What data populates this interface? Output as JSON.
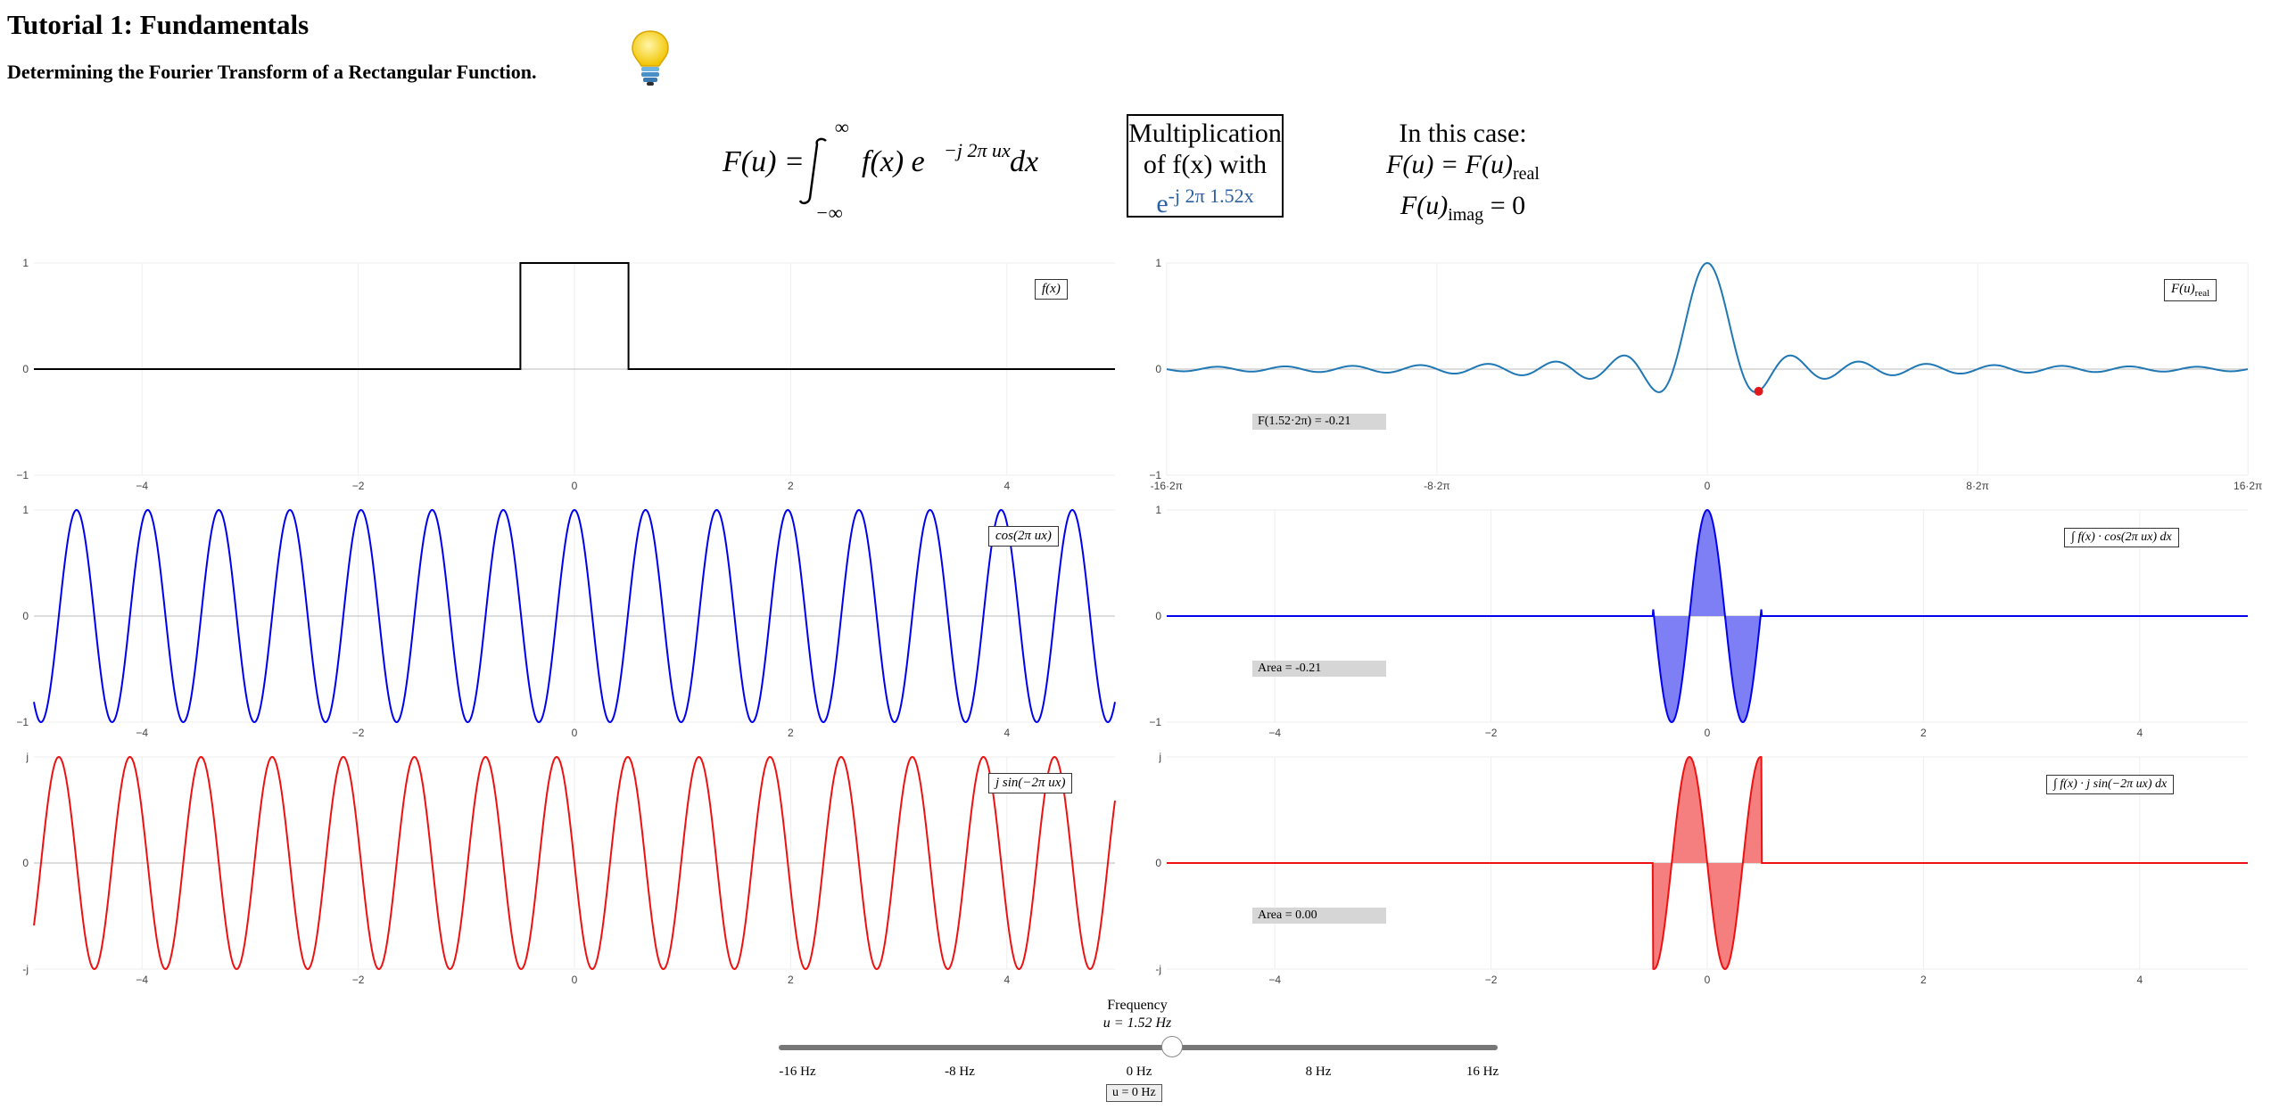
{
  "header": {
    "title": "Tutorial 1: Fundamentals",
    "subtitle": "Determining the Fourier Transform of a Rectangular Function."
  },
  "formula": {
    "lhs": "F(u) =",
    "upper": "∞",
    "lower": "−∞",
    "integrand": "f(x) e",
    "exponent": "−j 2π ux",
    "dx": "dx"
  },
  "multiplication_box": {
    "line1": "Multiplication",
    "line2": "of f(x) with",
    "base": "e",
    "exponent": "-j 2π 1.52x"
  },
  "case_box": {
    "line1": "In this case:",
    "line2": "F(u) = F(u)",
    "line2_sub": "real",
    "line3": "F(u)",
    "line3_sub": "imag",
    "line3_rest": " = 0"
  },
  "panels": {
    "fx": {
      "legend": "f(x)",
      "yticks": [
        "1",
        "0",
        "−1"
      ],
      "xticks": [
        "−4",
        "−2",
        "0",
        "2",
        "4"
      ]
    },
    "Fu": {
      "legend": "F(u)",
      "legend_sub": "real",
      "yticks": [
        "1",
        "0",
        "−1"
      ],
      "xticks": [
        "-16·2π",
        "-8·2π",
        "0",
        "8·2π",
        "16·2π"
      ],
      "label": "F(1.52·2π) = -0.21"
    },
    "cos": {
      "legend": "cos(2π ux)",
      "yticks": [
        "1",
        "0",
        "−1"
      ],
      "xticks": [
        "−4",
        "−2",
        "0",
        "2",
        "4"
      ]
    },
    "cos_int": {
      "legend": "∫ f(x) · cos(2π ux) dx",
      "yticks": [
        "1",
        "0",
        "−1"
      ],
      "xticks": [
        "−4",
        "−2",
        "0",
        "2",
        "4"
      ],
      "label": "Area = -0.21"
    },
    "sin": {
      "legend": "j sin(−2π ux)",
      "yticks": [
        "j",
        "0",
        "-j"
      ],
      "xticks": [
        "−4",
        "−2",
        "0",
        "2",
        "4"
      ]
    },
    "sin_int": {
      "legend": "∫ f(x) · j sin(−2π ux) dx",
      "yticks": [
        "j",
        "0",
        "-j"
      ],
      "xticks": [
        "−4",
        "−2",
        "0",
        "2",
        "4"
      ],
      "label": "Area = 0.00"
    }
  },
  "slider": {
    "title": "Frequency",
    "value_text": "u = 1.52 Hz",
    "value": 1.52,
    "min": -16,
    "max": 16,
    "labels": [
      "-16 Hz",
      "-8 Hz",
      "0 Hz",
      "8 Hz",
      "16 Hz"
    ],
    "reset_label": "u = 0 Hz"
  },
  "colors": {
    "black_curve": "#000000",
    "blue_curve": "#0000ee",
    "red_curve": "#ee1111",
    "spectrum_curve": "#1f77b4",
    "marker": "#e01a1a",
    "blue_fill": "#7f7ff5",
    "red_fill": "#f57f7f"
  },
  "chart_data": [
    {
      "type": "line",
      "name": "f(x)",
      "x_range": [
        -5,
        5
      ],
      "y_range": [
        -1,
        1
      ],
      "description_values": {
        "rect_from": -0.5,
        "rect_to": 0.5,
        "height": 1
      }
    },
    {
      "type": "line",
      "name": "F(u) real",
      "x_range": [
        -100.5,
        100.5
      ],
      "y_range": [
        -1,
        1
      ],
      "marker": {
        "u": 1.52,
        "value": -0.21
      }
    },
    {
      "type": "line",
      "name": "cos(2π ux)",
      "u": 1.52,
      "x_range": [
        -5,
        5
      ],
      "y_range": [
        -1,
        1
      ]
    },
    {
      "type": "area",
      "name": "f(x)·cos(2π ux)",
      "u": 1.52,
      "x_range": [
        -5,
        5
      ],
      "y_range": [
        -1,
        1
      ],
      "area": -0.21
    },
    {
      "type": "line",
      "name": "j sin(−2π ux)",
      "u": 1.52,
      "x_range": [
        -5,
        5
      ],
      "y_range": [
        -1,
        1
      ]
    },
    {
      "type": "area",
      "name": "f(x)·j sin(−2π ux)",
      "u": 1.52,
      "x_range": [
        -5,
        5
      ],
      "y_range": [
        -1,
        1
      ],
      "area": 0.0
    }
  ]
}
